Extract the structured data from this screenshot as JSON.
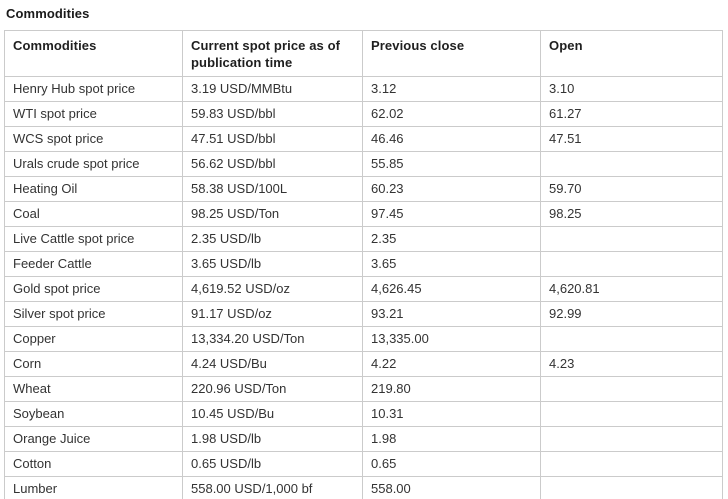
{
  "title": "Commodities",
  "chart_data": {
    "type": "table",
    "title": "Commodities",
    "columns": [
      "Commodities",
      "Current spot price as of publication time",
      "Previous close",
      "Open"
    ],
    "rows": [
      [
        "Henry Hub spot price",
        "3.19 USD/MMBtu",
        "3.12",
        "3.10"
      ],
      [
        "WTI spot price",
        "59.83 USD/bbl",
        "62.02",
        "61.27"
      ],
      [
        "WCS spot price",
        "47.51 USD/bbl",
        "46.46",
        "47.51"
      ],
      [
        "Urals crude spot price",
        "56.62 USD/bbl",
        "55.85",
        ""
      ],
      [
        "Heating Oil",
        "58.38 USD/100L",
        "60.23",
        "59.70"
      ],
      [
        "Coal",
        "98.25 USD/Ton",
        "97.45",
        "98.25"
      ],
      [
        "Live Cattle spot price",
        "2.35 USD/lb",
        "2.35",
        ""
      ],
      [
        "Feeder Cattle",
        "3.65 USD/lb",
        "3.65",
        ""
      ],
      [
        "Gold spot price",
        "4,619.52 USD/oz",
        "4,626.45",
        "4,620.81"
      ],
      [
        "Silver spot price",
        "91.17 USD/oz",
        "93.21",
        "92.99"
      ],
      [
        "Copper",
        "13,334.20 USD/Ton",
        "13,335.00",
        ""
      ],
      [
        "Corn",
        "4.24 USD/Bu",
        "4.22",
        "4.23"
      ],
      [
        "Wheat",
        "220.96 USD/Ton",
        "219.80",
        ""
      ],
      [
        "Soybean",
        "10.45 USD/Bu",
        "10.31",
        ""
      ],
      [
        "Orange Juice",
        "1.98 USD/lb",
        "1.98",
        ""
      ],
      [
        "Cotton",
        "0.65 USD/lb",
        "0.65",
        ""
      ],
      [
        "Lumber",
        "558.00 USD/1,000 bf",
        "558.00",
        ""
      ]
    ]
  }
}
